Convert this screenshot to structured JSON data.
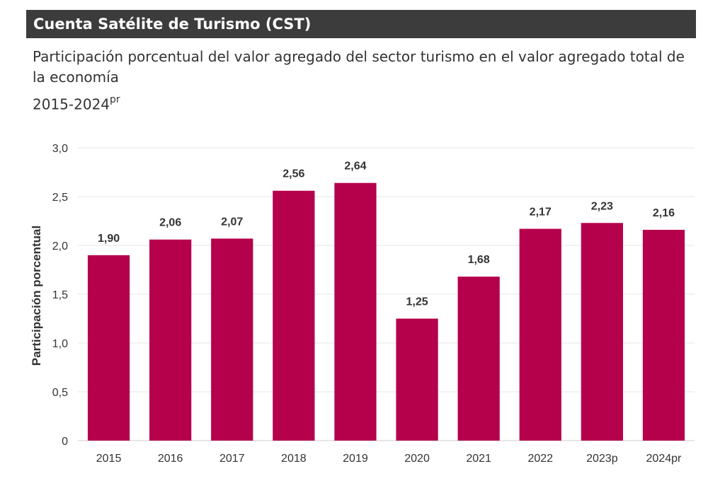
{
  "header": {
    "title": "Cuenta Satélite de Turismo (CST)"
  },
  "subtitle": "Participación porcentual del valor agregado del sector turismo en el valor agregado total de la economía",
  "period": {
    "main": "2015-2024",
    "suffix": "pr"
  },
  "colors": {
    "bar": "#b5004b",
    "grid": "#e6e6e6",
    "header_bg": "#3c3c3c"
  },
  "chart_data": {
    "type": "bar",
    "categories": [
      "2015",
      "2016",
      "2017",
      "2018",
      "2019",
      "2020",
      "2021",
      "2022",
      "2023p",
      "2024pr"
    ],
    "values": [
      1.9,
      2.06,
      2.07,
      2.56,
      2.64,
      1.25,
      1.68,
      2.17,
      2.23,
      2.16
    ],
    "value_labels": [
      "1,90",
      "2,06",
      "2,07",
      "2,56",
      "2,64",
      "1,25",
      "1,68",
      "2,17",
      "2,23",
      "2,16"
    ],
    "ylabel": "Participación porcentual",
    "xlabel": "",
    "ylim": [
      0,
      3
    ],
    "yticks": [
      0,
      0.5,
      1.0,
      1.5,
      2.0,
      2.5,
      3.0
    ],
    "ytick_labels": [
      "0",
      "0,5",
      "1,0",
      "1,5",
      "2,0",
      "2,5",
      "3,0"
    ],
    "grid": true,
    "legend": "none"
  }
}
